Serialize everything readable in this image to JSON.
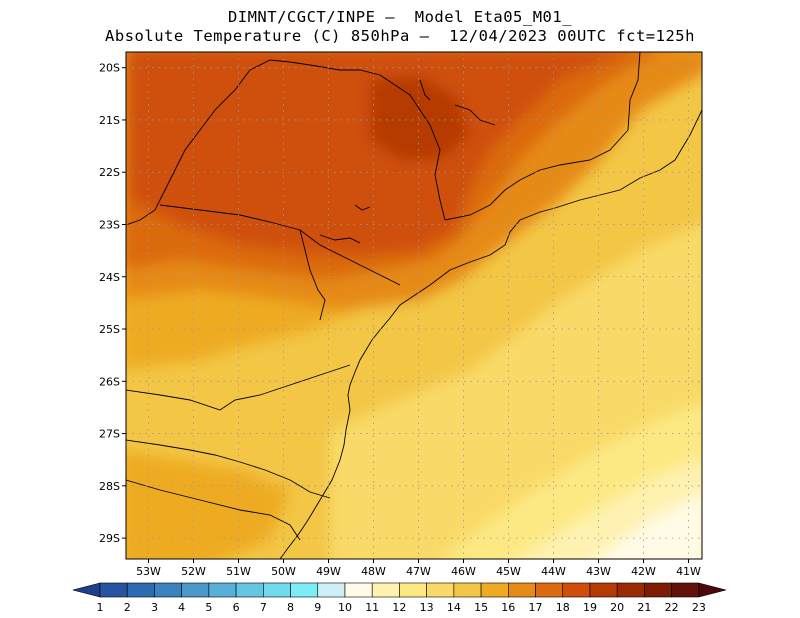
{
  "title": {
    "line1": "DIMNT/CGCT/INPE –  Model Eta05_M01_",
    "line2": "Absolute Temperature (C) 850hPa –  12/04/2023 00UTC fct=125h"
  },
  "map": {
    "lat_labels": [
      "20S",
      "21S",
      "22S",
      "23S",
      "24S",
      "25S",
      "26S",
      "27S",
      "28S",
      "29S"
    ],
    "lon_labels": [
      "53W",
      "52W",
      "51W",
      "50W",
      "49W",
      "48W",
      "47W",
      "46W",
      "45W",
      "44W",
      "43W",
      "42W",
      "41W"
    ],
    "lat_range": [
      -29.4,
      -19.7
    ],
    "lon_range": [
      -53.5,
      -40.7
    ],
    "grid": "dotted"
  },
  "colorbar": {
    "labels": [
      "1",
      "2",
      "3",
      "4",
      "5",
      "6",
      "7",
      "8",
      "9",
      "10",
      "11",
      "12",
      "13",
      "14",
      "15",
      "16",
      "17",
      "18",
      "19",
      "20",
      "21",
      "22",
      "23"
    ],
    "colors": [
      "#1f3f8c",
      "#2654a0",
      "#2e6bb0",
      "#3a82c0",
      "#4a98cc",
      "#58b0d8",
      "#64c6e2",
      "#70daec",
      "#7cecf6",
      "#cfeff6",
      "#fffbe6",
      "#fff2b0",
      "#fde984",
      "#f9da68",
      "#f3c646",
      "#eeab22",
      "#e68a18",
      "#db6a10",
      "#cf4f0a",
      "#b63a06",
      "#9a2a04",
      "#7e1c05",
      "#62120a",
      "#4a0a0c"
    ]
  }
}
